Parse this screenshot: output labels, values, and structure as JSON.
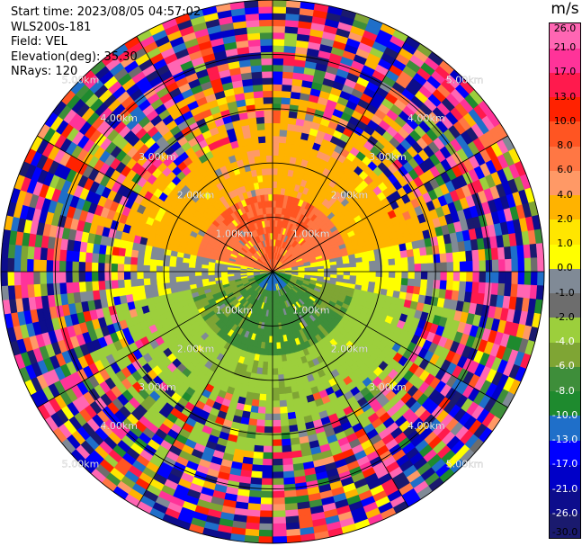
{
  "header": {
    "start_time": "Start time: 2023/08/05 04:57:02",
    "instrument": "WLS200s-181",
    "field": "Field: VEL",
    "elevation": "Elevation(deg): 35.30",
    "nrays": "NRays: 120"
  },
  "colorbar": {
    "unit": "m/s",
    "colors": [
      "#1a1a6e",
      "#0d0d8c",
      "#0000c8",
      "#0000ff",
      "#1f6fc9",
      "#1e8a2e",
      "#3e8e3a",
      "#7fa534",
      "#9ccf3c",
      "#6d6d6d",
      "#808a96",
      "#ffff00",
      "#ffe600",
      "#ffb300",
      "#ff9966",
      "#ff7744",
      "#ff5522",
      "#ff2200",
      "#ff1a4d",
      "#ff3399",
      "#ff66b3"
    ],
    "labels": [
      "-30.0",
      "-26.0",
      "-21.0",
      "-17.0",
      "-13.0",
      "-10.0",
      "-8.0",
      "-6.0",
      "-4.0",
      "-2.0",
      "-1.0",
      "0.0",
      "1.0",
      "2.0",
      "4.0",
      "6.0",
      "8.0",
      "10.0",
      "13.0",
      "17.0",
      "21.0",
      "26.0"
    ]
  },
  "chart_data": {
    "type": "heatmap",
    "title": "",
    "plot_type": "PPI (polar plan position indicator)",
    "center_value": 0.0,
    "colorbar_range": [
      -30.0,
      26.0
    ],
    "range_ring_labels": [
      "1.00km",
      "2.00km",
      "3.00km",
      "4.00km",
      "5.00km"
    ],
    "range_rings_km": [
      1,
      2,
      3,
      4,
      5
    ],
    "max_range_km": 5.0,
    "regions": [
      {
        "description": "north sector, near ranges",
        "velocity_ms": [
          6.0,
          8.0
        ]
      },
      {
        "description": "north sector, mid ranges",
        "velocity_ms": [
          2.0,
          4.0
        ]
      },
      {
        "description": "south sector, near ranges",
        "velocity_ms": [
          -6.0,
          -10.0
        ]
      },
      {
        "description": "south sector, mid ranges",
        "velocity_ms": [
          -2.0,
          -4.0
        ]
      },
      {
        "description": "east/west beams",
        "velocity_ms": [
          -1.0,
          1.0
        ]
      },
      {
        "description": "outer ranges",
        "velocity_ms": "noise (full range)"
      }
    ],
    "grid": true
  }
}
